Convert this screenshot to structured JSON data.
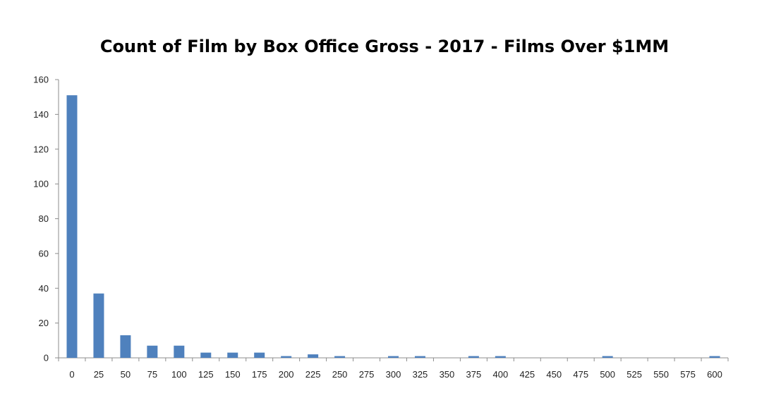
{
  "chart_data": {
    "type": "bar",
    "title": "Count of Film by Box Office Gross - 2017 - Films Over $1MM",
    "xlabel": "",
    "ylabel": "",
    "ylim": [
      0,
      160
    ],
    "yticks": [
      "0",
      "20",
      "40",
      "60",
      "80",
      "100",
      "120",
      "140",
      "160"
    ],
    "categories": [
      "0",
      "25",
      "50",
      "75",
      "100",
      "125",
      "150",
      "175",
      "200",
      "225",
      "250",
      "275",
      "300",
      "325",
      "350",
      "375",
      "400",
      "425",
      "450",
      "475",
      "500",
      "525",
      "550",
      "575",
      "600"
    ],
    "values": [
      151,
      37,
      13,
      7,
      7,
      3,
      3,
      3,
      1,
      2,
      1,
      0,
      1,
      1,
      0,
      1,
      1,
      0,
      0,
      0,
      1,
      0,
      0,
      0,
      1
    ],
    "bar_color": "#4f81bd",
    "grid": false,
    "legend": "none"
  }
}
